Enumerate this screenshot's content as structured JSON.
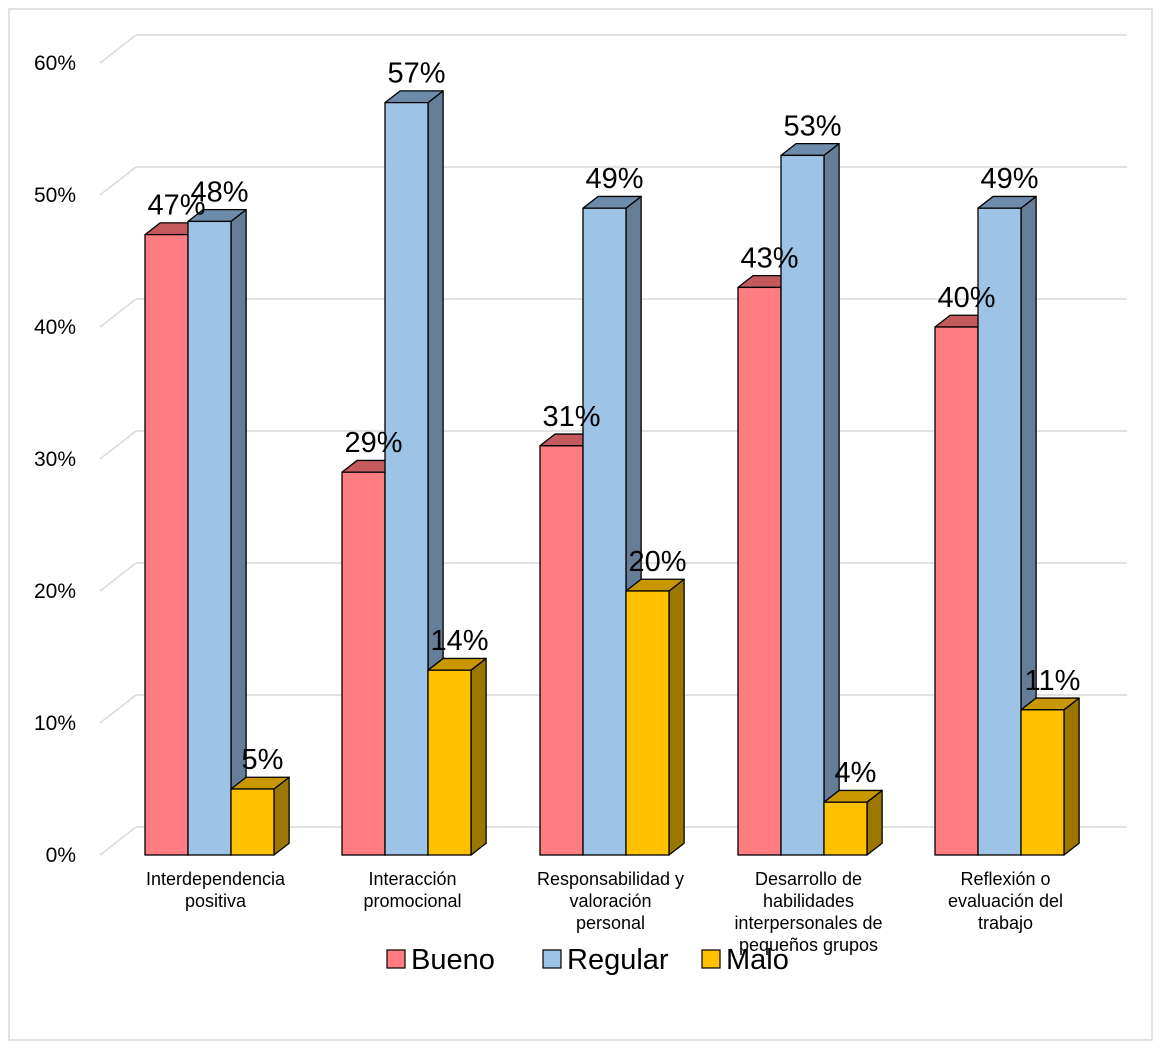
{
  "chart_data": {
    "type": "bar",
    "categories": [
      [
        "Interdependencia",
        "positiva"
      ],
      [
        "Interacción",
        "promocional"
      ],
      [
        "Responsabilidad y",
        "valoración",
        "personal"
      ],
      [
        "Desarrollo de",
        "habilidades",
        "interpersonales de",
        "pequeños grupos"
      ],
      [
        "Reflexión o",
        "evaluación del",
        "trabajo"
      ]
    ],
    "series": [
      {
        "name": "Bueno",
        "values": [
          47,
          29,
          31,
          43,
          40
        ],
        "labels": [
          "47%",
          "29%",
          "31%",
          "43%",
          "40%"
        ]
      },
      {
        "name": "Regular",
        "values": [
          48,
          57,
          49,
          53,
          49
        ],
        "labels": [
          "48%",
          "57%",
          "49%",
          "53%",
          "49%"
        ]
      },
      {
        "name": "Malo",
        "values": [
          5,
          14,
          20,
          4,
          11
        ],
        "labels": [
          "5%",
          "14%",
          "20%",
          "4%",
          "11%"
        ]
      }
    ],
    "y_ticks": [
      "0%",
      "10%",
      "20%",
      "30%",
      "40%",
      "50%",
      "60%"
    ],
    "ylim": [
      0,
      60
    ],
    "grid": true,
    "legend_position": "bottom",
    "colors": {
      "Bueno": {
        "front": "#ff7c80",
        "top": "#c45a5e",
        "side": "#c45a5e"
      },
      "Regular": {
        "front": "#9dc3e6",
        "top": "#6d8cab",
        "side": "#667d97"
      },
      "Malo": {
        "front": "#ffc000",
        "top": "#c99700",
        "side": "#9c7700"
      }
    }
  }
}
